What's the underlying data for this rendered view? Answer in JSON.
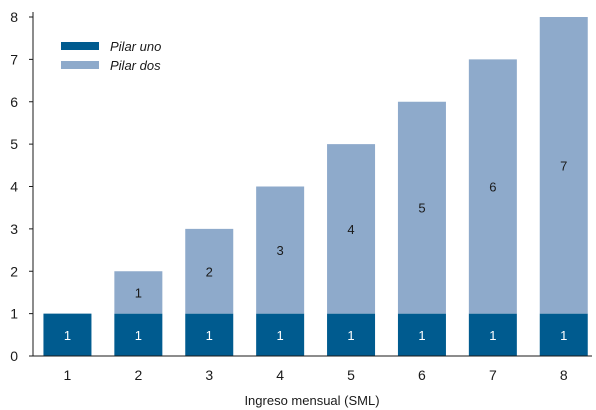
{
  "chart_data": {
    "type": "bar",
    "stacked": true,
    "categories": [
      "1",
      "2",
      "3",
      "4",
      "5",
      "6",
      "7",
      "8"
    ],
    "series": [
      {
        "name": "Pilar uno",
        "values": [
          1,
          1,
          1,
          1,
          1,
          1,
          1,
          1
        ],
        "color": "#005b8f",
        "label_color": "#ffffff"
      },
      {
        "name": "Pilar dos",
        "values": [
          0,
          1,
          2,
          3,
          4,
          5,
          6,
          7
        ],
        "color": "#8eaacb",
        "label_color": "#1a1a1a"
      }
    ],
    "xlabel": "Ingreso mensual (SML)",
    "ylabel": "",
    "ylim": [
      0,
      8
    ],
    "yticks": [
      0,
      1,
      2,
      3,
      4,
      5,
      6,
      7,
      8
    ],
    "grid": false,
    "legend_position": "top-left"
  }
}
